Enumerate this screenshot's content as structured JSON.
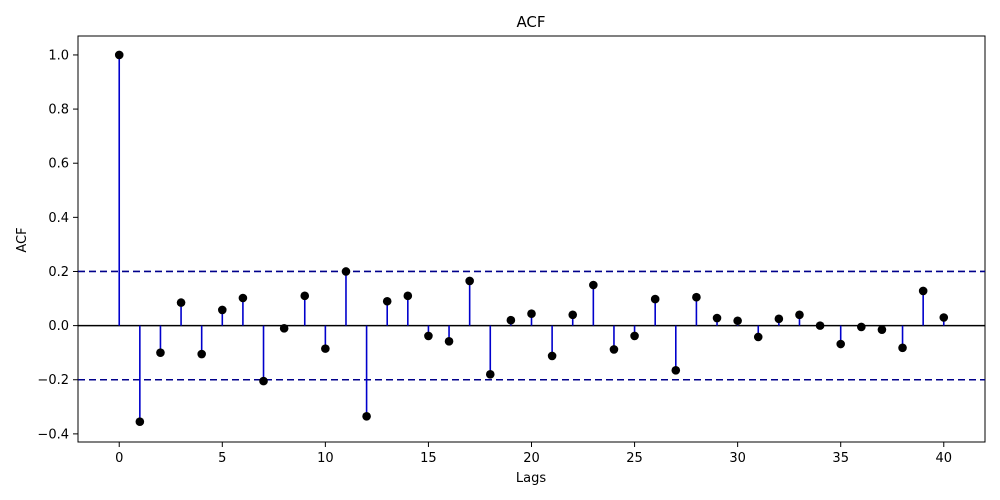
{
  "chart_data": {
    "type": "stem",
    "title": "ACF",
    "xlabel": "Lags",
    "ylabel": "ACF",
    "xlim": [
      -2,
      42
    ],
    "ylim": [
      -0.43,
      1.07
    ],
    "xticks": [
      0,
      5,
      10,
      15,
      20,
      25,
      30,
      35,
      40
    ],
    "yticks": [
      -0.4,
      -0.2,
      0.0,
      0.2,
      0.4,
      0.6,
      0.8,
      1.0
    ],
    "xtick_labels": [
      "0",
      "5",
      "10",
      "15",
      "20",
      "25",
      "30",
      "35",
      "40"
    ],
    "ytick_labels": [
      "−0.4",
      "−0.2",
      "0.0",
      "0.2",
      "0.4",
      "0.6",
      "0.8",
      "1.0"
    ],
    "confidence_band": [
      -0.2,
      0.2
    ],
    "grid": false,
    "colors": {
      "stem": "#0000cc",
      "marker": "#000000",
      "band": "#00008b",
      "zero_line": "#000000"
    },
    "x": [
      0,
      1,
      2,
      3,
      4,
      5,
      6,
      7,
      8,
      9,
      10,
      11,
      12,
      13,
      14,
      15,
      16,
      17,
      18,
      19,
      20,
      21,
      22,
      23,
      24,
      25,
      26,
      27,
      28,
      29,
      30,
      31,
      32,
      33,
      34,
      35,
      36,
      37,
      38,
      39,
      40
    ],
    "values": [
      1.0,
      -0.355,
      -0.1,
      0.085,
      -0.105,
      0.058,
      0.102,
      -0.205,
      -0.01,
      0.11,
      -0.085,
      0.2,
      -0.335,
      0.09,
      0.11,
      -0.038,
      -0.058,
      0.165,
      -0.18,
      0.02,
      0.044,
      -0.112,
      0.04,
      0.15,
      -0.088,
      -0.038,
      0.098,
      -0.165,
      0.105,
      0.028,
      0.018,
      -0.042,
      0.025,
      0.04,
      0.0,
      -0.068,
      -0.005,
      -0.015,
      -0.082,
      0.128,
      0.03
    ]
  }
}
